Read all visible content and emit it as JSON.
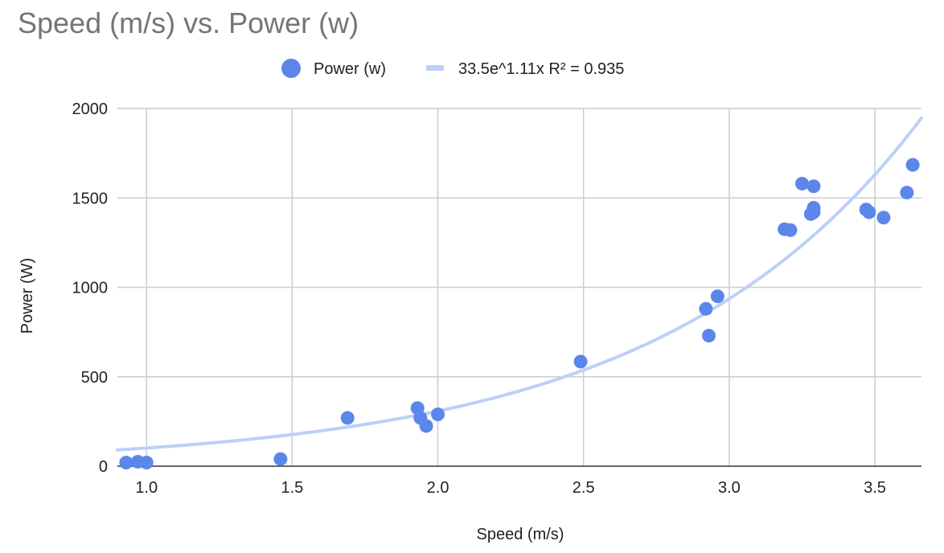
{
  "chart_data": {
    "type": "scatter",
    "title": "Speed (m/s) vs. Power (w)",
    "xlabel": "Speed (m/s)",
    "ylabel": "Power (W)",
    "xlim": [
      0.9,
      3.66
    ],
    "ylim": [
      0,
      2000
    ],
    "x_ticks": [
      "1.0",
      "1.5",
      "2.0",
      "2.5",
      "3.0",
      "3.5"
    ],
    "y_ticks": [
      "0",
      "500",
      "1000",
      "1500",
      "2000"
    ],
    "grid": true,
    "legend_position": "top-center",
    "series": [
      {
        "name": "Power (w)",
        "color": "#5b87eb",
        "points": [
          {
            "x": 0.93,
            "y": 20
          },
          {
            "x": 0.97,
            "y": 25
          },
          {
            "x": 1.0,
            "y": 20
          },
          {
            "x": 1.46,
            "y": 40
          },
          {
            "x": 1.69,
            "y": 270
          },
          {
            "x": 1.93,
            "y": 325
          },
          {
            "x": 1.94,
            "y": 270
          },
          {
            "x": 1.96,
            "y": 225
          },
          {
            "x": 2.0,
            "y": 290
          },
          {
            "x": 2.49,
            "y": 585
          },
          {
            "x": 2.92,
            "y": 880
          },
          {
            "x": 2.93,
            "y": 730
          },
          {
            "x": 2.96,
            "y": 950
          },
          {
            "x": 3.19,
            "y": 1325
          },
          {
            "x": 3.21,
            "y": 1320
          },
          {
            "x": 3.25,
            "y": 1580
          },
          {
            "x": 3.28,
            "y": 1410
          },
          {
            "x": 3.29,
            "y": 1445
          },
          {
            "x": 3.29,
            "y": 1420
          },
          {
            "x": 3.29,
            "y": 1565
          },
          {
            "x": 3.47,
            "y": 1435
          },
          {
            "x": 3.48,
            "y": 1420
          },
          {
            "x": 3.53,
            "y": 1390
          },
          {
            "x": 3.61,
            "y": 1530
          },
          {
            "x": 3.63,
            "y": 1685
          }
        ]
      }
    ],
    "trendline": {
      "name": "33.5e^1.11x R² = 0.935",
      "type": "exponential",
      "a": 33.5,
      "b": 1.11,
      "color": "#bcd0f7"
    }
  }
}
